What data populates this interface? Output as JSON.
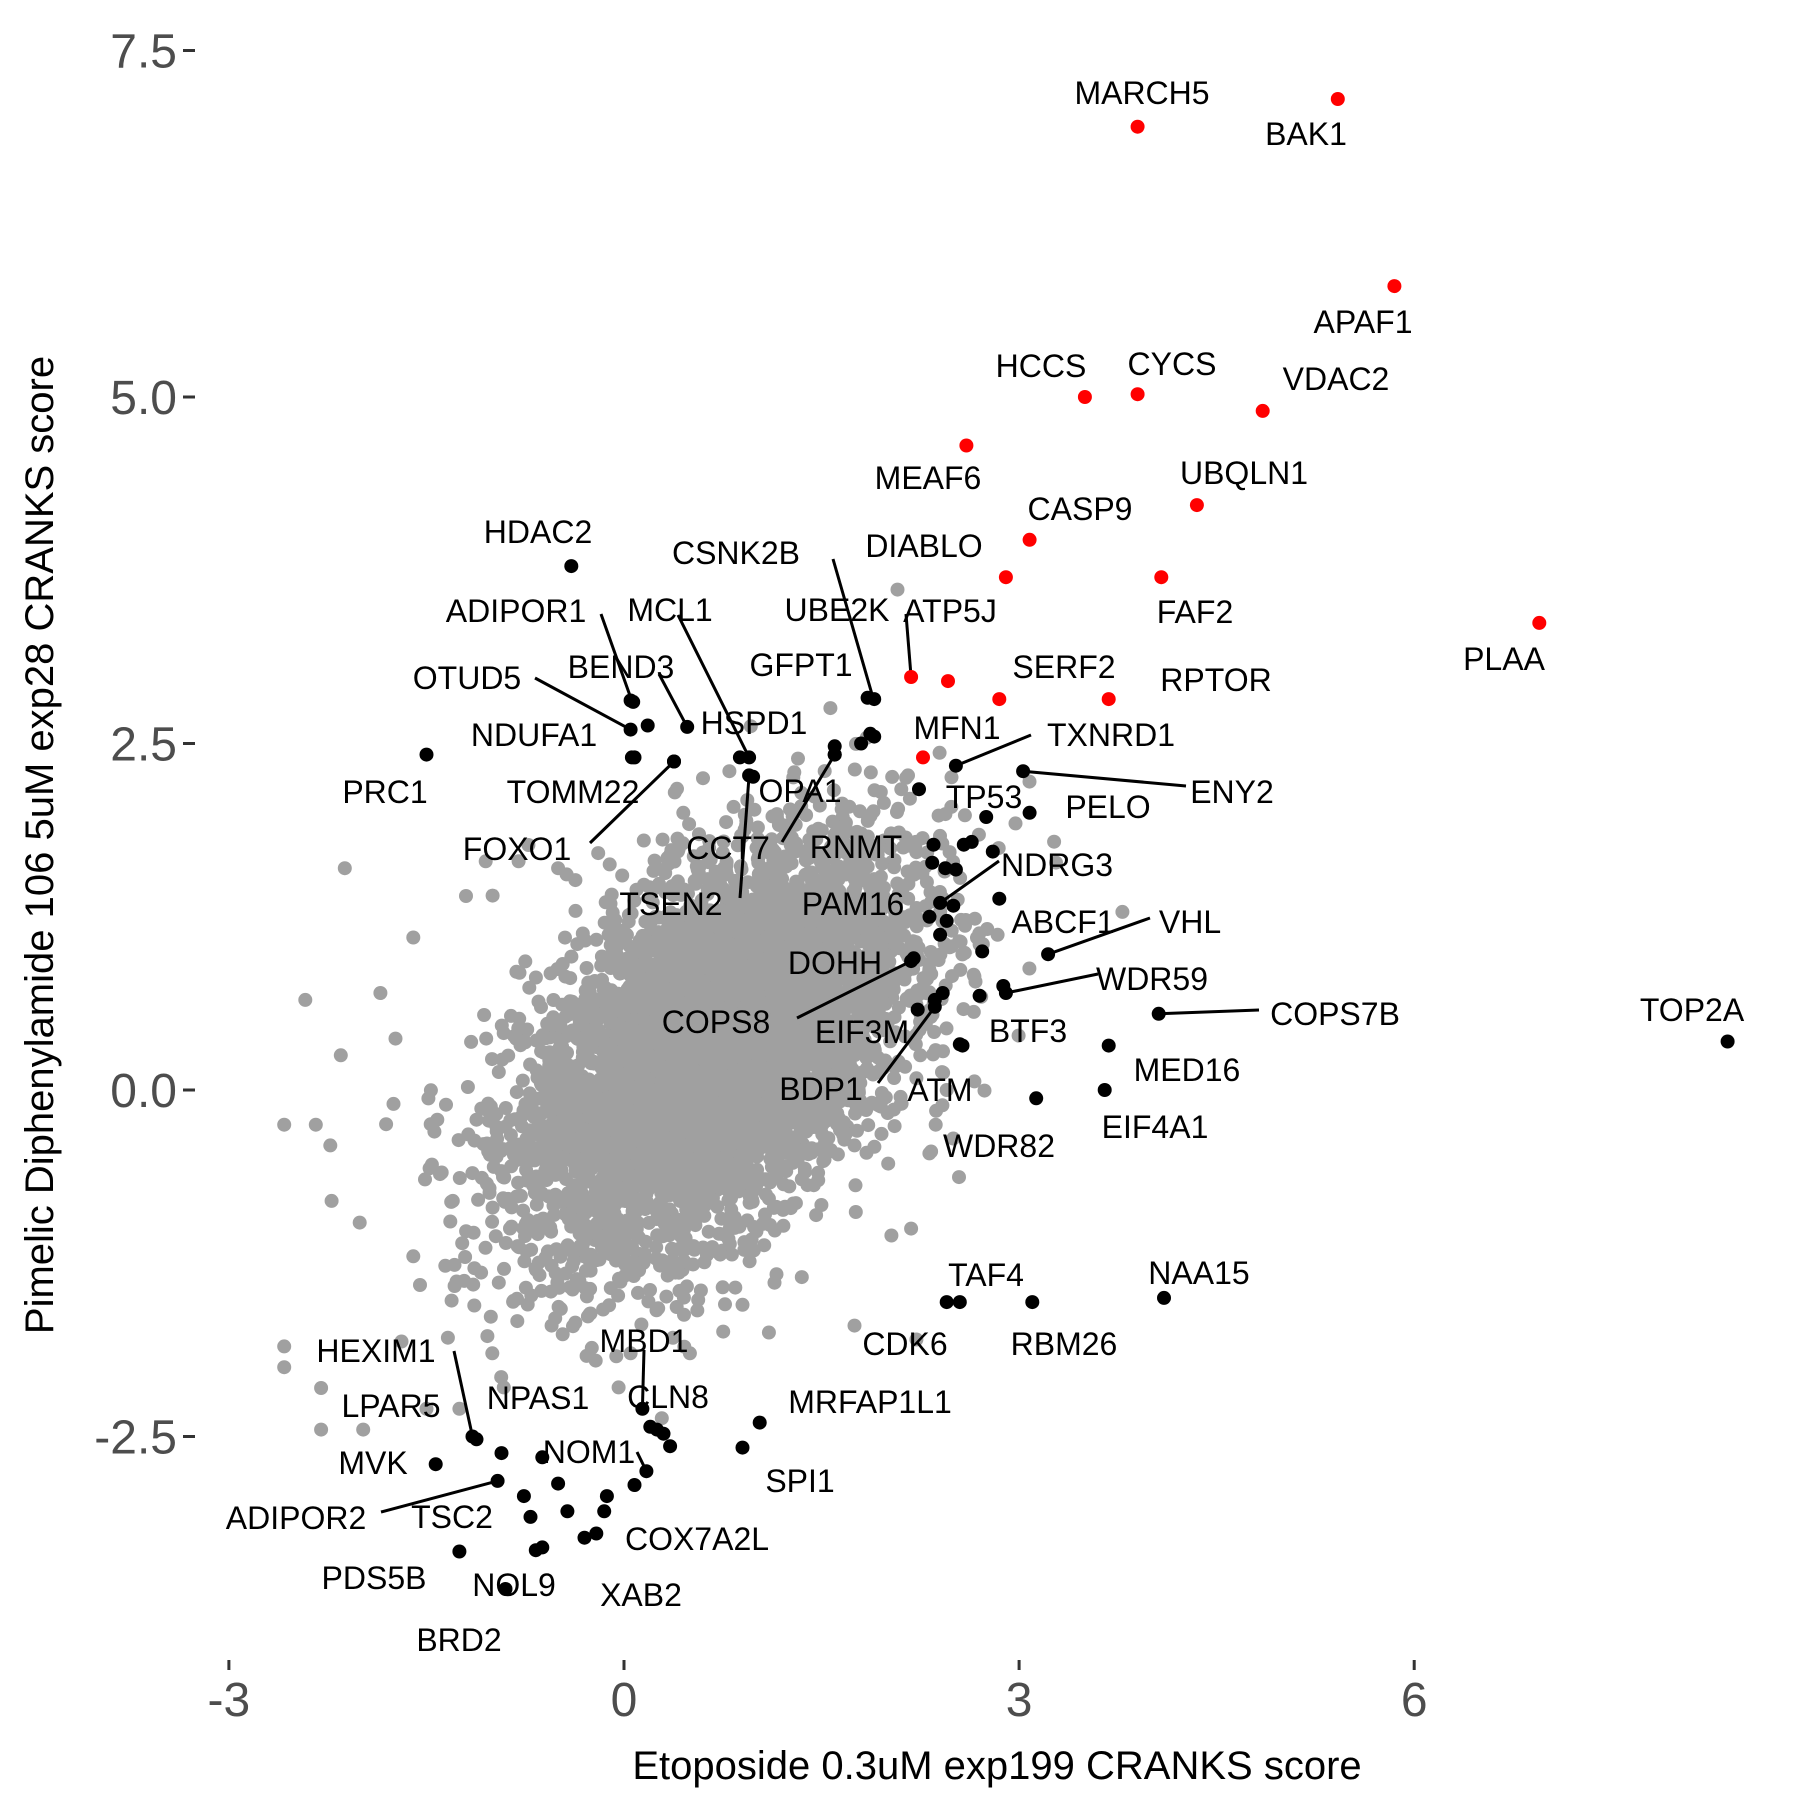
{
  "chart_data": {
    "type": "scatter",
    "xlabel": "Etoposide 0.3uM exp199 CRANKS score",
    "ylabel": "Pimelic Diphenylamide 106 5uM exp28 CRANKS score",
    "xlim": [
      -3.0,
      8.5
    ],
    "ylim": [
      -4.1,
      7.75
    ],
    "x_ticks": [
      -3,
      0,
      3,
      6
    ],
    "y_ticks": [
      -2.5,
      0.0,
      2.5,
      5.0,
      7.5
    ],
    "x_tick_labels": [
      "-3",
      "0",
      "3",
      "6"
    ],
    "y_tick_labels": [
      "-2.5",
      "0.0",
      "2.5",
      "5.0",
      "7.5"
    ],
    "grid": false,
    "legend": "none",
    "colors": {
      "background": "#ffffff",
      "cloud": "#a0a0a0",
      "highlight_positive": "#ff0000",
      "highlight_other": "#000000"
    },
    "background_cloud": {
      "approx_center": [
        0.7,
        0.3
      ],
      "approx_points": 18000,
      "outer_points": [
        [
          -2.12,
          1.6
        ],
        [
          -2.42,
          0.65
        ],
        [
          -2.15,
          0.25
        ],
        [
          -2.58,
          -0.25
        ],
        [
          -2.34,
          -0.25
        ],
        [
          -2.23,
          -0.4
        ],
        [
          -2.22,
          -0.8
        ],
        [
          -2.58,
          -1.85
        ],
        [
          -2.58,
          -2.0
        ],
        [
          -2.3,
          -2.15
        ],
        [
          -2.3,
          -2.45
        ],
        [
          -1.98,
          -2.45
        ],
        [
          -1.5,
          -2.3
        ],
        [
          -1.6,
          -1.2
        ],
        [
          -1.3,
          -0.8
        ],
        [
          -1.75,
          -0.1
        ],
        [
          -1.85,
          0.7
        ],
        [
          -1.6,
          1.1
        ],
        [
          1.6,
          0.9
        ],
        [
          1.75,
          -0.4
        ],
        [
          2.1,
          -0.05
        ],
        [
          2.18,
          -1.0
        ],
        [
          2.03,
          -1.05
        ],
        [
          2.3,
          1.5
        ],
        [
          2.25,
          0.55
        ],
        [
          2.37,
          -0.15
        ],
        [
          2.22,
          -1.8
        ],
        [
          1.75,
          -1.7
        ],
        [
          1.35,
          -1.35
        ],
        [
          1.1,
          -1.75
        ],
        [
          0.9,
          -1.55
        ],
        [
          0.5,
          -1.9
        ],
        [
          0.05,
          -1.9
        ],
        [
          -0.55,
          -1.7
        ],
        [
          -1.0,
          -1.9
        ],
        [
          -1.25,
          -2.3
        ],
        [
          2.05,
          1.3
        ],
        [
          1.85,
          1.1
        ],
        [
          1.6,
          1.55
        ],
        [
          1.95,
          2.15
        ],
        [
          2.12,
          1.75
        ],
        [
          0.6,
          2.25
        ],
        [
          0.8,
          2.3
        ],
        [
          1.2,
          1.45
        ],
        [
          0.45,
          2.0
        ],
        [
          0.15,
          1.8
        ],
        [
          -0.5,
          1.6
        ],
        [
          -0.8,
          1.65
        ],
        [
          -1.05,
          1.65
        ],
        [
          -1.2,
          1.4
        ],
        [
          2.7,
          1.05
        ],
        [
          2.3,
          0.8
        ],
        [
          2.5,
          -0.35
        ],
        [
          2.25,
          0.25
        ],
        [
          2.45,
          0.0
        ]
      ]
    },
    "highlighted_points": [
      {
        "label": "MARCH5",
        "x": 3.9,
        "y": 6.95,
        "color": "#ff0000"
      },
      {
        "label": "BAK1",
        "x": 5.42,
        "y": 7.15,
        "color": "#ff0000"
      },
      {
        "label": "APAF1",
        "x": 5.85,
        "y": 5.8,
        "color": "#ff0000"
      },
      {
        "label": "HCCS",
        "x": 3.5,
        "y": 5.0,
        "color": "#ff0000"
      },
      {
        "label": "CYCS",
        "x": 3.9,
        "y": 5.02,
        "color": "#ff0000"
      },
      {
        "label": "VDAC2",
        "x": 4.85,
        "y": 4.9,
        "color": "#ff0000"
      },
      {
        "label": "MEAF6",
        "x": 2.6,
        "y": 4.65,
        "color": "#ff0000"
      },
      {
        "label": "UBQLN1",
        "x": 4.35,
        "y": 4.22,
        "color": "#ff0000"
      },
      {
        "label": "CASP9",
        "x": 3.08,
        "y": 3.97,
        "color": "#ff0000"
      },
      {
        "label": "DIABLO",
        "x": 2.9,
        "y": 3.7,
        "color": "#ff0000"
      },
      {
        "label": "FAF2",
        "x": 4.08,
        "y": 3.7,
        "color": "#ff0000"
      },
      {
        "label": "PLAA",
        "x": 6.95,
        "y": 3.37,
        "color": "#ff0000"
      },
      {
        "label": "ATP5J",
        "x": 2.18,
        "y": 2.98,
        "color": "#ff0000"
      },
      {
        "label": "GFPT1",
        "x": 2.46,
        "y": 2.95,
        "color": "#ff0000"
      },
      {
        "label": "SERF2",
        "x": 2.85,
        "y": 2.82,
        "color": "#ff0000"
      },
      {
        "label": "RPTOR",
        "x": 3.68,
        "y": 2.82,
        "color": "#ff0000"
      },
      {
        "label": "MFN1",
        "x": 2.27,
        "y": 2.4,
        "color": "#ff0000"
      },
      {
        "label": "HDAC2",
        "x": -0.4,
        "y": 3.78,
        "color": "#000000"
      },
      {
        "label": "CSNK2B",
        "x": 1.9,
        "y": 2.82,
        "color": "#000000"
      },
      {
        "label": "UBE2K",
        "x": 1.9,
        "y": 2.55,
        "color": "#000000"
      },
      {
        "label": "ADIPOR1",
        "x": 0.07,
        "y": 2.8,
        "color": "#000000"
      },
      {
        "label": "MCL1",
        "x": 0.95,
        "y": 2.4,
        "color": "#000000"
      },
      {
        "label": "BEND3",
        "x": 0.48,
        "y": 2.62,
        "color": "#000000"
      },
      {
        "label": "OTUD5",
        "x": 0.05,
        "y": 2.6,
        "color": "#000000"
      },
      {
        "label": "NDUFA1",
        "x": 0.08,
        "y": 2.4,
        "color": "#000000"
      },
      {
        "label": "HSPD1",
        "x": 0.88,
        "y": 2.4,
        "color": "#000000"
      },
      {
        "label": "PRC1",
        "x": -1.5,
        "y": 2.42,
        "color": "#000000"
      },
      {
        "label": "TOMM22",
        "x": 0.38,
        "y": 2.37,
        "color": "#000000"
      },
      {
        "label": "FOXO1",
        "x": 0.38,
        "y": 2.37,
        "color": "#000000"
      },
      {
        "label": "OPA1",
        "x": 1.6,
        "y": 2.42,
        "color": "#000000"
      },
      {
        "label": "CCT7",
        "x": 1.6,
        "y": 2.42,
        "color": "#000000"
      },
      {
        "label": "TSEN2",
        "x": 0.95,
        "y": 2.27,
        "color": "#000000"
      },
      {
        "label": "TXNRD1",
        "x": 2.52,
        "y": 2.34,
        "color": "#000000"
      },
      {
        "label": "ENY2",
        "x": 3.03,
        "y": 2.3,
        "color": "#000000"
      },
      {
        "label": "TP53",
        "x": 2.24,
        "y": 2.17,
        "color": "#000000"
      },
      {
        "label": "PELO",
        "x": 3.08,
        "y": 2.0,
        "color": "#000000"
      },
      {
        "label": "RNMT",
        "x": 2.35,
        "y": 1.77,
        "color": "#000000"
      },
      {
        "label": "NDRG3",
        "x": 2.4,
        "y": 1.35,
        "color": "#000000"
      },
      {
        "label": "PAM16",
        "x": 2.32,
        "y": 1.25,
        "color": "#000000"
      },
      {
        "label": "VHL",
        "x": 3.22,
        "y": 0.98,
        "color": "#000000"
      },
      {
        "label": "ABCF1",
        "x": 2.72,
        "y": 1.0,
        "color": "#000000"
      },
      {
        "label": "DOHH",
        "x": 2.2,
        "y": 0.95,
        "color": "#000000"
      },
      {
        "label": "WDR59",
        "x": 2.9,
        "y": 0.7,
        "color": "#000000"
      },
      {
        "label": "COPS8",
        "x": 2.18,
        "y": 0.93,
        "color": "#000000"
      },
      {
        "label": "EIF3M",
        "x": 2.36,
        "y": 0.6,
        "color": "#000000"
      },
      {
        "label": "COPS7B",
        "x": 4.06,
        "y": 0.55,
        "color": "#000000"
      },
      {
        "label": "BTF3",
        "x": 2.57,
        "y": 0.32,
        "color": "#000000"
      },
      {
        "label": "MED16",
        "x": 3.68,
        "y": 0.32,
        "color": "#000000"
      },
      {
        "label": "TOP2A",
        "x": 8.38,
        "y": 0.35,
        "color": "#000000"
      },
      {
        "label": "BDP1",
        "x": 2.23,
        "y": 0.58,
        "color": "#000000"
      },
      {
        "label": "ATM",
        "x": 2.36,
        "y": 0.65,
        "color": "#000000"
      },
      {
        "label": "EIF4A1",
        "x": 3.65,
        "y": 0.0,
        "color": "#000000"
      },
      {
        "label": "WDR82",
        "x": 3.13,
        "y": -0.06,
        "color": "#000000"
      },
      {
        "label": "TAF4",
        "x": 2.55,
        "y": -1.53,
        "color": "#000000"
      },
      {
        "label": "CDK6",
        "x": 2.45,
        "y": -1.53,
        "color": "#000000"
      },
      {
        "label": "RBM26",
        "x": 3.1,
        "y": -1.53,
        "color": "#000000"
      },
      {
        "label": "NAA15",
        "x": 4.1,
        "y": -1.5,
        "color": "#000000"
      },
      {
        "label": "HEXIM1",
        "x": -1.15,
        "y": -2.5,
        "color": "#000000"
      },
      {
        "label": "MBD1",
        "x": 0.14,
        "y": -2.3,
        "color": "#000000"
      },
      {
        "label": "NPAS1",
        "x": -1.12,
        "y": -2.52,
        "color": "#000000"
      },
      {
        "label": "CLN8",
        "x": 0.25,
        "y": -2.45,
        "color": "#000000"
      },
      {
        "label": "MRFAP1L1",
        "x": 1.03,
        "y": -2.4,
        "color": "#000000"
      },
      {
        "label": "LPAR5",
        "x": -0.93,
        "y": -2.62,
        "color": "#000000"
      },
      {
        "label": "NOM1",
        "x": -0.62,
        "y": -2.65,
        "color": "#000000"
      },
      {
        "label": "MVK",
        "x": -1.43,
        "y": -2.7,
        "color": "#000000"
      },
      {
        "label": "SPI1",
        "x": 0.9,
        "y": -2.58,
        "color": "#000000"
      },
      {
        "label": "ADIPOR2",
        "x": -0.96,
        "y": -2.82,
        "color": "#000000"
      },
      {
        "label": "TSC2",
        "x": -0.76,
        "y": -2.93,
        "color": "#000000"
      },
      {
        "label": "COX7A2L",
        "x": -0.13,
        "y": -2.93,
        "color": "#000000"
      },
      {
        "label": "PDS5B",
        "x": -1.25,
        "y": -3.33,
        "color": "#000000"
      },
      {
        "label": "NOL9",
        "x": -0.62,
        "y": -3.3,
        "color": "#000000"
      },
      {
        "label": "XAB2",
        "x": -0.21,
        "y": -3.2,
        "color": "#000000"
      },
      {
        "label": "BRD2",
        "x": -0.9,
        "y": -3.6,
        "color": "#000000"
      }
    ],
    "extra_black_points": [
      [
        0.05,
        2.81
      ],
      [
        0.18,
        2.63
      ],
      [
        0.06,
        2.4
      ],
      [
        0.98,
        2.26
      ],
      [
        1.6,
        2.48
      ],
      [
        1.8,
        2.5
      ],
      [
        1.85,
        2.83
      ],
      [
        1.87,
        2.57
      ],
      [
        2.34,
        1.64
      ],
      [
        2.44,
        1.6
      ],
      [
        2.52,
        1.59
      ],
      [
        2.58,
        1.77
      ],
      [
        2.64,
        1.79
      ],
      [
        2.75,
        1.97
      ],
      [
        2.8,
        1.72
      ],
      [
        2.85,
        1.38
      ],
      [
        2.5,
        1.33
      ],
      [
        2.45,
        1.22
      ],
      [
        2.4,
        1.12
      ],
      [
        2.42,
        0.7
      ],
      [
        2.88,
        0.75
      ],
      [
        2.7,
        0.68
      ],
      [
        2.55,
        0.33
      ],
      [
        0.35,
        -2.57
      ],
      [
        0.17,
        -2.75
      ],
      [
        0.08,
        -2.85
      ],
      [
        -0.15,
        -3.04
      ],
      [
        -0.5,
        -2.84
      ],
      [
        -0.71,
        -3.08
      ],
      [
        -0.67,
        -3.32
      ],
      [
        -0.3,
        -3.23
      ],
      [
        -0.43,
        -3.04
      ],
      [
        0.2,
        -2.43
      ],
      [
        0.3,
        -2.48
      ]
    ],
    "leader_lines": [
      {
        "from": "CSNK2B",
        "to": [
          1.9,
          2.8
        ]
      },
      {
        "from": "UBE2K",
        "to": [
          2.18,
          2.98
        ]
      },
      {
        "from": "ADIPOR1",
        "to": [
          0.07,
          2.78
        ]
      },
      {
        "from": "MCL1",
        "to": [
          0.95,
          2.4
        ]
      },
      {
        "from": "BEND3",
        "to": [
          0.48,
          2.62
        ]
      },
      {
        "from": "OTUD5",
        "to": [
          0.05,
          2.6
        ]
      },
      {
        "from": "FOXO1",
        "to": [
          0.38,
          2.37
        ]
      },
      {
        "from": "CCT7",
        "to": [
          1.6,
          2.42
        ]
      },
      {
        "from": "TSEN2",
        "to": [
          0.95,
          2.27
        ]
      },
      {
        "from": "TXNRD1",
        "to": [
          2.52,
          2.34
        ]
      },
      {
        "from": "ENY2",
        "to": [
          3.03,
          2.3
        ]
      },
      {
        "from": "NDRG3",
        "to": [
          2.4,
          1.35
        ]
      },
      {
        "from": "VHL",
        "to": [
          3.22,
          0.98
        ]
      },
      {
        "from": "WDR59",
        "to": [
          2.9,
          0.7
        ]
      },
      {
        "from": "COPS8",
        "to": [
          2.18,
          0.93
        ]
      },
      {
        "from": "COPS7B",
        "to": [
          4.06,
          0.55
        ]
      },
      {
        "from": "BDP1",
        "to": [
          2.36,
          0.6
        ]
      },
      {
        "from": "HEXIM1",
        "to": [
          -1.15,
          -2.5
        ]
      },
      {
        "from": "MBD1",
        "to": [
          0.14,
          -2.3
        ]
      },
      {
        "from": "NOM1",
        "to": [
          0.17,
          -2.75
        ]
      },
      {
        "from": "ADIPOR2",
        "to": [
          -0.96,
          -2.82
        ]
      }
    ]
  },
  "labels_text": {
    "MARCH5": "MARCH5",
    "BAK1": "BAK1",
    "APAF1": "APAF1",
    "HCCS": "HCCS",
    "CYCS": "CYCS",
    "VDAC2": "VDAC2",
    "MEAF6": "MEAF6",
    "UBQLN1": "UBQLN1",
    "CASP9": "CASP9",
    "DIABLO": "DIABLO",
    "FAF2": "FAF2",
    "PLAA": "PLAA",
    "ATP5J": "ATP5J",
    "GFPT1": "GFPT1",
    "SERF2": "SERF2",
    "RPTOR": "RPTOR",
    "MFN1": "MFN1",
    "HDAC2": "HDAC2",
    "CSNK2B": "CSNK2B",
    "UBE2K": "UBE2K",
    "ADIPOR1": "ADIPOR1",
    "MCL1": "MCL1",
    "BEND3": "BEND3",
    "OTUD5": "OTUD5",
    "NDUFA1": "NDUFA1",
    "HSPD1": "HSPD1",
    "PRC1": "PRC1",
    "TOMM22": "TOMM22",
    "FOXO1": "FOXO1",
    "OPA1": "OPA1",
    "CCT7": "CCT7",
    "TSEN2": "TSEN2",
    "TXNRD1": "TXNRD1",
    "ENY2": "ENY2",
    "TP53": "TP53",
    "PELO": "PELO",
    "RNMT": "RNMT",
    "NDRG3": "NDRG3",
    "PAM16": "PAM16",
    "VHL": "VHL",
    "ABCF1": "ABCF1",
    "DOHH": "DOHH",
    "WDR59": "WDR59",
    "COPS8": "COPS8",
    "EIF3M": "EIF3M",
    "COPS7B": "COPS7B",
    "BTF3": "BTF3",
    "MED16": "MED16",
    "TOP2A": "TOP2A",
    "BDP1": "BDP1",
    "ATM": "ATM",
    "EIF4A1": "EIF4A1",
    "WDR82": "WDR82",
    "TAF4": "TAF4",
    "CDK6": "CDK6",
    "RBM26": "RBM26",
    "NAA15": "NAA15",
    "HEXIM1": "HEXIM1",
    "MBD1": "MBD1",
    "NPAS1": "NPAS1",
    "CLN8": "CLN8",
    "MRFAP1L1": "MRFAP1L1",
    "LPAR5": "LPAR5",
    "NOM1": "NOM1",
    "MVK": "MVK",
    "SPI1": "SPI1",
    "ADIPOR2": "ADIPOR2",
    "TSC2": "TSC2",
    "COX7A2L": "COX7A2L",
    "PDS5B": "PDS5B",
    "NOL9": "NOL9",
    "XAB2": "XAB2",
    "BRD2": "BRD2"
  }
}
